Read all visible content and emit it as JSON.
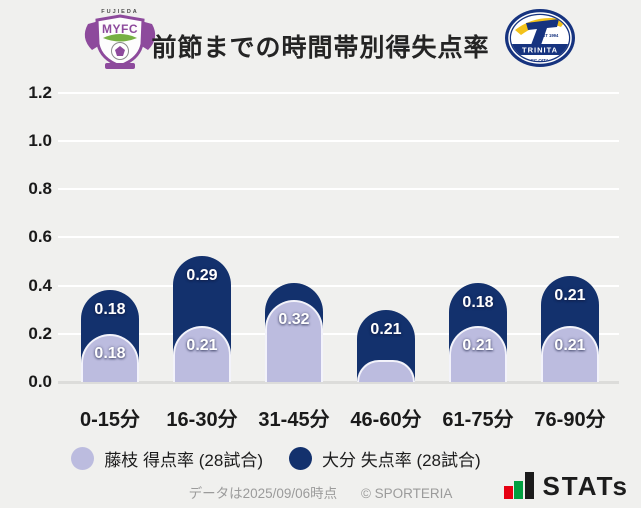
{
  "colors": {
    "background": "#f0f0ee",
    "fujieda_bar": "#bcbcdf",
    "oita_bar": "#13316d",
    "grid": "#ffffff",
    "baseline": "#dcdcda",
    "axis_text": "#1a1a1a",
    "bar_label_text": "#ffffff",
    "footer_text": "#9b9b9b",
    "brand_red": "#e60012",
    "brand_green": "#00a040",
    "brand_dark": "#1b1b1b",
    "fujieda_purple": "#8d4a9c",
    "fujieda_green": "#76b043",
    "trinita_navy": "#16337f",
    "trinita_yellow": "#f3c21a"
  },
  "header": {
    "title": "前節までの時間帯別得失点率",
    "fujieda_logo": {
      "top_text": "FUJIEDA",
      "monogram": "MYFC"
    },
    "trinita_logo": {
      "est_text": "EST 1994",
      "banner_text": "TRINITA",
      "sub_text": "FC OITA"
    }
  },
  "chart_data": {
    "type": "bar",
    "stacked": true,
    "title": "前節までの時間帯別得失点率",
    "categories": [
      "0-15分",
      "16-30分",
      "31-45分",
      "46-60分",
      "61-75分",
      "76-90分"
    ],
    "series": [
      {
        "name": "藤枝 得点率 (28試合)",
        "color": "#bcbcdf",
        "values": [
          0.18,
          0.21,
          0.32,
          0.07,
          0.21,
          0.21
        ],
        "labels": [
          "0.18",
          "0.21",
          "0.32",
          "",
          "0.21",
          "0.21"
        ]
      },
      {
        "name": "大分 失点率 (28試合)",
        "color": "#13316d",
        "values": [
          0.18,
          0.29,
          0.07,
          0.21,
          0.18,
          0.21
        ],
        "labels": [
          "0.18",
          "0.29",
          "",
          "0.21",
          "0.18",
          "0.21"
        ]
      }
    ],
    "unlabeled_segments": "estimated from bar geometry",
    "ylim": [
      0,
      1.2
    ],
    "yticks": [
      {
        "label": "1.2",
        "value": 1.2
      },
      {
        "label": "1.0",
        "value": 1.0
      },
      {
        "label": "0.8",
        "value": 0.8
      },
      {
        "label": "0.6",
        "value": 0.6
      },
      {
        "label": "0.4",
        "value": 0.4
      },
      {
        "label": "0.2",
        "value": 0.2
      },
      {
        "label": "0.0",
        "value": 0.0
      }
    ],
    "grid": true,
    "legend_position": "bottom"
  },
  "legend": {
    "items": [
      {
        "label": "藤枝 得点率 (28試合)",
        "color": "#bcbcdf"
      },
      {
        "label": "大分 失点率 (28試合)",
        "color": "#13316d"
      }
    ]
  },
  "footer": {
    "data_note": "データは2025/09/06時点",
    "copyright": "© SPORTERIA"
  },
  "brand": {
    "label": "STATs"
  }
}
